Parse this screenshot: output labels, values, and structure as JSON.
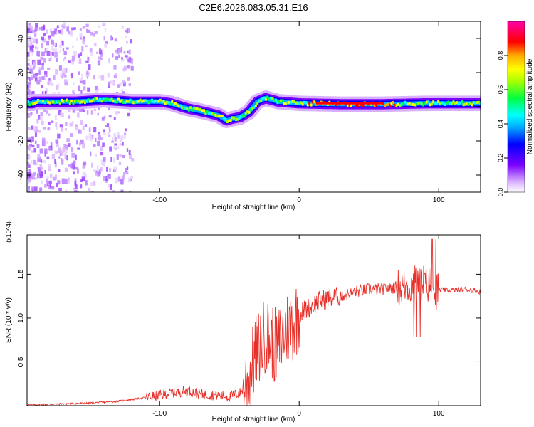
{
  "title": "C2E6.2026.083.05.31.E16",
  "chart_data": [
    {
      "type": "heatmap",
      "title": "C2E6.2026.083.05.31.E16",
      "xlabel": "Height of straight line (km)",
      "ylabel": "Frequency (Hz)",
      "xlim": [
        -195,
        130
      ],
      "ylim": [
        -50,
        50
      ],
      "xticks": [
        -100,
        0,
        100
      ],
      "yticks": [
        -40,
        -20,
        0,
        20,
        40
      ],
      "ridge_center_hz": [
        {
          "x": -190,
          "y": 3
        },
        {
          "x": -160,
          "y": 3
        },
        {
          "x": -140,
          "y": 4
        },
        {
          "x": -120,
          "y": 3
        },
        {
          "x": -100,
          "y": 3
        },
        {
          "x": -92,
          "y": 2
        },
        {
          "x": -80,
          "y": -1
        },
        {
          "x": -68,
          "y": -3
        },
        {
          "x": -58,
          "y": -5
        },
        {
          "x": -52,
          "y": -8
        },
        {
          "x": -48,
          "y": -7
        },
        {
          "x": -42,
          "y": -6
        },
        {
          "x": -36,
          "y": -3
        },
        {
          "x": -30,
          "y": 3
        },
        {
          "x": -24,
          "y": 5
        },
        {
          "x": -15,
          "y": 3
        },
        {
          "x": 0,
          "y": 2
        },
        {
          "x": 30,
          "y": 1.5
        },
        {
          "x": 60,
          "y": 1.5
        },
        {
          "x": 90,
          "y": 2
        },
        {
          "x": 110,
          "y": 2
        },
        {
          "x": 130,
          "y": 2
        }
      ],
      "colorbar": {
        "label": "Normalized spectral amplitude",
        "range": [
          0,
          1
        ],
        "ticks": [
          0.0,
          0.2,
          0.4,
          0.6,
          0.8
        ],
        "colors": [
          "#ffffff",
          "#d9b0ff",
          "#7a00ff",
          "#0000ff",
          "#00aaff",
          "#00ffff",
          "#00ff40",
          "#aaff00",
          "#ffff00",
          "#ffaa00",
          "#ff0000",
          "#ff00aa"
        ]
      }
    },
    {
      "type": "line",
      "xlabel": "Height of straight line (km)",
      "ylabel": "SNR (10 * v/v)",
      "y_multiplier": "(x10^4)",
      "xlim": [
        -195,
        130
      ],
      "ylim": [
        0,
        1.95
      ],
      "xticks": [
        -100,
        0,
        100
      ],
      "yticks": [
        0.5,
        1.0,
        1.5
      ],
      "color": "#e8302a",
      "series": [
        {
          "name": "SNR",
          "x": [
            -195,
            -170,
            -150,
            -130,
            -115,
            -100,
            -90,
            -80,
            -70,
            -60,
            -50,
            -42,
            -36,
            -32,
            -28,
            -24,
            -20,
            -16,
            -12,
            -8,
            -4,
            0,
            5,
            10,
            15,
            20,
            30,
            40,
            50,
            60,
            70,
            75,
            80,
            85,
            88,
            92,
            95,
            97,
            100,
            105,
            110,
            120,
            130
          ],
          "y": [
            0.01,
            0.02,
            0.03,
            0.05,
            0.08,
            0.12,
            0.15,
            0.17,
            0.13,
            0.12,
            0.1,
            0.15,
            0.3,
            0.55,
            0.7,
            0.8,
            0.75,
            0.65,
            0.8,
            0.9,
            0.95,
            1.05,
            1.1,
            1.15,
            1.2,
            1.22,
            1.25,
            1.3,
            1.33,
            1.33,
            1.35,
            1.35,
            1.38,
            1.4,
            1.42,
            1.38,
            1.42,
            1.3,
            1.32,
            1.32,
            1.32,
            1.33,
            1.3
          ]
        }
      ]
    }
  ]
}
